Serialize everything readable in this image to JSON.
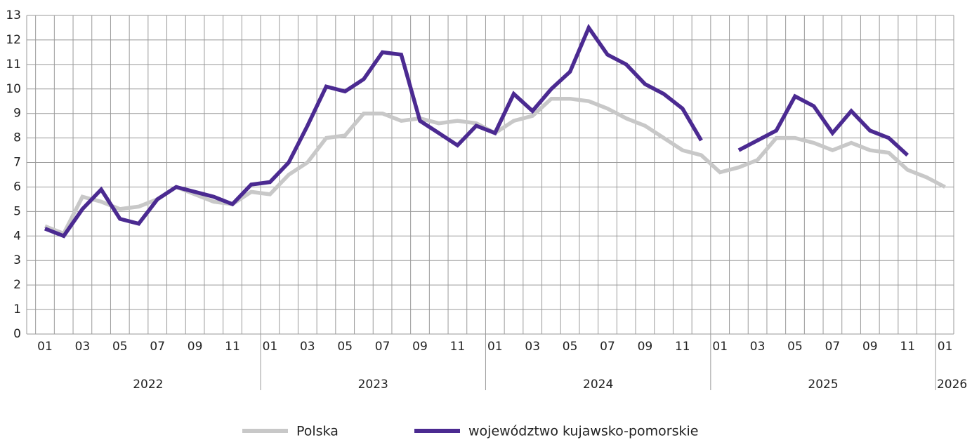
{
  "chart_data": {
    "type": "line",
    "categories": [
      "01",
      null,
      "03",
      null,
      "05",
      null,
      "07",
      null,
      "09",
      null,
      "11",
      null,
      "01",
      null,
      "03",
      null,
      "05",
      null,
      "07",
      null,
      "09",
      null,
      "11",
      null,
      "01",
      null,
      "03",
      null,
      "05",
      null,
      "07",
      null,
      "09",
      null,
      "11",
      null,
      "01",
      null,
      "03",
      null,
      "05",
      null,
      "07",
      null,
      "09",
      null,
      "11",
      null,
      "01"
    ],
    "year_labels": [
      "2022",
      "2023",
      "2024",
      "2025",
      "2026"
    ],
    "series": [
      {
        "name": "Polska",
        "color": "#c8c8c8",
        "values": [
          4.4,
          4.1,
          5.6,
          5.4,
          5.1,
          5.2,
          5.5,
          6.0,
          5.7,
          5.4,
          5.3,
          5.8,
          5.7,
          6.5,
          7.0,
          8.0,
          8.1,
          9.0,
          9.0,
          8.7,
          8.8,
          8.6,
          8.7,
          8.6,
          8.2,
          8.7,
          8.9,
          9.6,
          9.6,
          9.5,
          9.2,
          8.8,
          8.5,
          8.0,
          7.5,
          7.3,
          6.6,
          6.8,
          7.1,
          8.0,
          8.0,
          7.8,
          7.5,
          7.8,
          7.5,
          7.4,
          6.7,
          6.4,
          6.0
        ]
      },
      {
        "name": "województwo kujawsko-pomorskie",
        "color": "#4b2a91",
        "values": [
          4.3,
          4.0,
          5.1,
          5.9,
          4.7,
          4.5,
          5.5,
          6.0,
          5.8,
          5.6,
          5.3,
          6.1,
          6.2,
          7.0,
          8.5,
          10.1,
          9.9,
          10.4,
          11.5,
          11.4,
          8.7,
          8.2,
          7.7,
          8.5,
          8.2,
          9.8,
          9.1,
          10.0,
          10.7,
          12.5,
          11.4,
          11.0,
          10.2,
          9.8,
          9.2,
          7.9,
          null,
          7.5,
          7.9,
          8.3,
          9.7,
          9.3,
          8.2,
          9.1,
          8.3,
          8.0,
          7.3,
          null,
          null
        ]
      }
    ],
    "ylim": [
      0,
      13
    ],
    "yticks": [
      0,
      1,
      2,
      3,
      4,
      5,
      6,
      7,
      8,
      9,
      10,
      11,
      12,
      13
    ],
    "grid": true
  }
}
